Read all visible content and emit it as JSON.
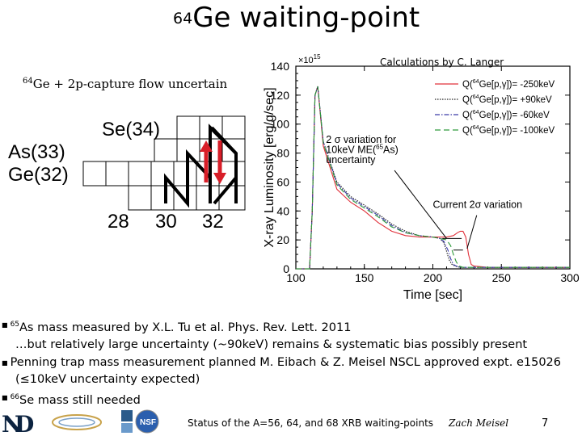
{
  "slide": {
    "title_mass": "64",
    "title_text": "Ge waiting-point",
    "calc_note": "Calculations by C. Langer",
    "flow_title_mass": "64",
    "flow_title_text": "Ge + 2p-capture flow uncertain"
  },
  "nuclide_chart": {
    "element_labels": [
      "Se(34)",
      "As(33)",
      "Ge(32)"
    ],
    "neutron_labels": [
      "28",
      "30",
      "32"
    ]
  },
  "chart_data": {
    "type": "line",
    "xlabel": "Time [sec]",
    "ylabel": "X-ray Luminosity [erg/g/sec]",
    "y_multiplier": "×10^15",
    "xlim": [
      100,
      300
    ],
    "ylim": [
      0,
      140
    ],
    "x_ticks": [
      "100",
      "150",
      "200",
      "250",
      "300"
    ],
    "y_ticks": [
      "0",
      "20",
      "40",
      "60",
      "80",
      "100",
      "120",
      "140"
    ],
    "legend_position": "top-right",
    "series": [
      {
        "name": "Q(64Ge[p,γ])= -250keV",
        "color": "#e0303a",
        "dash": "",
        "x": [
          100,
          110,
          112,
          114,
          116,
          120,
          130,
          140,
          150,
          160,
          170,
          180,
          190,
          200,
          210,
          215,
          218,
          220,
          222,
          224,
          226,
          228,
          230,
          240,
          250,
          260,
          270,
          280,
          290,
          300
        ],
        "y": [
          0,
          0,
          40,
          120,
          126,
          85,
          55,
          46,
          40,
          32,
          26,
          23,
          22,
          22,
          22,
          23,
          25,
          26,
          26,
          22,
          10,
          3,
          2,
          1,
          1,
          1,
          1,
          1,
          1,
          1
        ]
      },
      {
        "name": "Q(64Ge[p,γ])= +90keV",
        "color": "#222222",
        "dash": "1.5,1.5",
        "x": [
          100,
          110,
          112,
          114,
          116,
          120,
          130,
          140,
          150,
          160,
          170,
          180,
          190,
          200,
          205,
          208,
          210,
          212,
          214,
          216,
          220,
          230,
          240,
          250,
          260,
          270,
          280,
          290,
          300
        ],
        "y": [
          0,
          0,
          40,
          120,
          126,
          88,
          60,
          50,
          44,
          38,
          31,
          26,
          23,
          22,
          21,
          18,
          12,
          6,
          3,
          2,
          1,
          1,
          1,
          1,
          1,
          1,
          1,
          1,
          1
        ]
      },
      {
        "name": "Q(64Ge[p,γ])= -60keV",
        "color": "#3a3aa8",
        "dash": "6,2,1.5,2",
        "x": [
          100,
          110,
          112,
          114,
          116,
          120,
          130,
          140,
          150,
          160,
          170,
          180,
          190,
          200,
          205,
          208,
          211,
          213,
          215,
          217,
          220,
          230,
          240,
          250,
          260,
          270,
          280,
          290,
          300
        ],
        "y": [
          0,
          0,
          40,
          120,
          126,
          88,
          59,
          49,
          43,
          37,
          30,
          25,
          23,
          22,
          21,
          19,
          13,
          7,
          3,
          2,
          1,
          1,
          1,
          1,
          1,
          1,
          1,
          1,
          1
        ]
      },
      {
        "name": "Q(64Ge[p,γ])= -100keV",
        "color": "#2e9a3a",
        "dash": "7,4",
        "x": [
          100,
          110,
          112,
          114,
          116,
          120,
          130,
          140,
          150,
          160,
          170,
          180,
          190,
          200,
          205,
          210,
          213,
          215,
          217,
          219,
          222,
          230,
          240,
          250,
          260,
          270,
          280,
          290,
          300
        ],
        "y": [
          0,
          0,
          40,
          120,
          126,
          87,
          58,
          48,
          42,
          36,
          29,
          25,
          23,
          22,
          21,
          20,
          16,
          10,
          5,
          2,
          1,
          1,
          1,
          1,
          1,
          1,
          1,
          1,
          1
        ]
      }
    ],
    "annotations": [
      {
        "text": "2 σ variation for",
        "line": 1
      },
      {
        "text": "10keV ME(65As)",
        "line": 2
      },
      {
        "text": "uncertainty",
        "line": 3
      },
      {
        "text": "Current 2σ variation",
        "line": 0
      }
    ]
  },
  "bullets": [
    {
      "mass": "65",
      "text": "As mass measured by X.L. Tu et al. Phys. Rev. Lett. 2011"
    },
    {
      "mass": "",
      "text": "…but relatively large uncertainty (~90keV) remains & systematic bias possibly present"
    },
    {
      "mass": "",
      "text": "Penning trap mass measurement planned M. Eibach & Z. Meisel NSCL approved expt. e15026"
    },
    {
      "mass": "",
      "text": "(≤10keV uncertainty expected)"
    },
    {
      "mass": "66",
      "text": "Se mass still needed"
    }
  ],
  "footer": {
    "status": "Status of the A=56, 64, and 68 XRB waiting-points",
    "author": "Zach Meisel",
    "page": "7"
  }
}
